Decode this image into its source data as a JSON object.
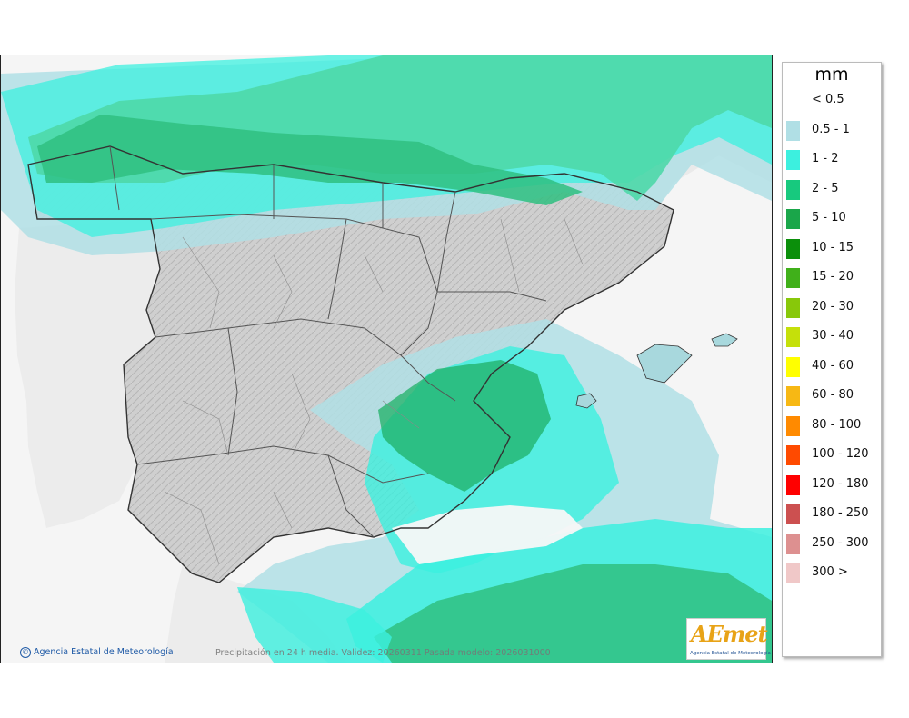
{
  "legend": {
    "unit": "mm",
    "items": [
      {
        "label": "< 0.5",
        "color": "#ffffff"
      },
      {
        "label": "0.5 - 1",
        "color": "#b0dfe5"
      },
      {
        "label": "1 - 2",
        "color": "#3cf0df"
      },
      {
        "label": "2 - 5",
        "color": "#17c97e"
      },
      {
        "label": "5 - 10",
        "color": "#1aa64a"
      },
      {
        "label": "10 - 15",
        "color": "#0b8f0b"
      },
      {
        "label": "15 - 20",
        "color": "#40b01a"
      },
      {
        "label": "20 - 30",
        "color": "#88c80a"
      },
      {
        "label": "30 - 40",
        "color": "#c5e00a"
      },
      {
        "label": "40 - 60",
        "color": "#ffff00"
      },
      {
        "label": "60 - 80",
        "color": "#f7b814"
      },
      {
        "label": "80 - 100",
        "color": "#ff8a00"
      },
      {
        "label": "100 - 120",
        "color": "#ff4a00"
      },
      {
        "label": "120 - 180",
        "color": "#ff0000"
      },
      {
        "label": "180 - 250",
        "color": "#cc5050"
      },
      {
        "label": "250 - 300",
        "color": "#dd9090"
      },
      {
        "label": "300 >",
        "color": "#f0c8c8"
      }
    ]
  },
  "footer": {
    "copyright": "Agencia Estatal de Meteorología",
    "caption": "Precipitación en 24 h media. Validez: 20260311 Pasada modelo: 2026031000"
  },
  "logo": {
    "wordmark": "AEmet",
    "subtitle": "Agencia Estatal de Meteorología"
  },
  "map": {
    "land_color": "#c9c9c9",
    "foreign_land_color": "#ececec",
    "sea_color": "#f4f4f4",
    "border_color": "#333333",
    "fields": [
      {
        "name": "atlantic-north",
        "level": "1 - 2",
        "color": "#4fe9d0"
      },
      {
        "name": "cantabrian-coast",
        "level": "2 - 5",
        "color": "#2fcf8a"
      },
      {
        "name": "bay-of-biscay",
        "level": "2 - 5",
        "color": "#46d8a5"
      },
      {
        "name": "valencia",
        "level": "5 - 10",
        "color": "#1fb065"
      },
      {
        "name": "mediterranean-south",
        "level": "2 - 5",
        "color": "#2fc080"
      }
    ]
  }
}
